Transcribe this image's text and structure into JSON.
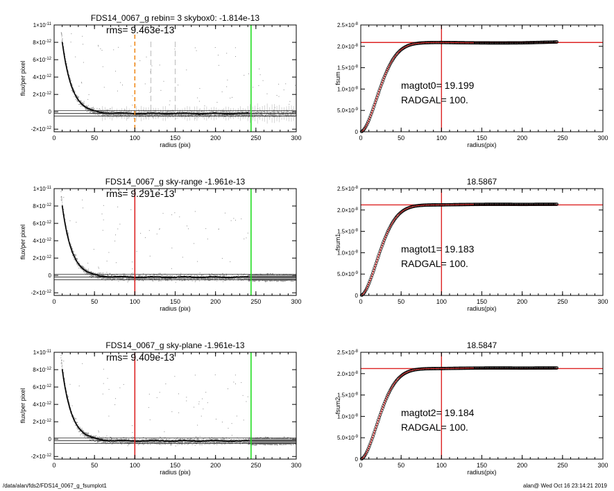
{
  "chart_data": [
    {
      "type": "scatter",
      "title": "FDS14_0067_g rebin= 3    skybox0: -1.814e-13",
      "annotation": "rms= 9.463e-13",
      "xlabel": "radius (pix)",
      "ylabel": "flux/per pixel",
      "xlim": [
        0,
        300
      ],
      "ylim": [
        -2.3e-12,
        1e-11
      ],
      "xticks": [
        0,
        50,
        100,
        150,
        200,
        250,
        300
      ],
      "xtick_labels": [
        "0",
        "50",
        "100",
        "150",
        "200",
        "250",
        "300"
      ],
      "yticks": [
        1e-11,
        8e-12,
        6e-12,
        4e-12,
        2e-12,
        0,
        -2e-12
      ],
      "ytick_labels": [
        {
          "m": "1×10",
          "e": "-11"
        },
        {
          "m": "8×10",
          "e": "-12"
        },
        {
          "m": "6×10",
          "e": "-12"
        },
        {
          "m": "4×10",
          "e": "-12"
        },
        {
          "m": "2×10",
          "e": "-12"
        },
        {
          "m": "0",
          "e": ""
        },
        {
          "m": "-2×10",
          "e": "-12"
        }
      ],
      "profile_amplitude": 1.9e-11,
      "profile_scale": 12,
      "profile_end": 242,
      "vlines": [
        {
          "x": 100,
          "color": "#f08a1c",
          "style": "dashed"
        },
        {
          "x": 120,
          "color": "#aaaaaa",
          "style": "dashed"
        },
        {
          "x": 150,
          "color": "#aaaaaa",
          "style": "dashed"
        },
        {
          "x": 244,
          "color": "#22dd22",
          "style": "solid"
        }
      ],
      "hlines": [
        {
          "y": -1.814e-13
        },
        {
          "y": 1.2e-13
        },
        {
          "y": -4.8e-13
        }
      ],
      "error_bars": true,
      "dense_tail": false,
      "colors": {
        "points": "#8c8c8c",
        "profile": "#000000"
      }
    },
    {
      "type": "scatter",
      "title": "FDS14_0067_g sky-range -1.961e-13",
      "annotation": "rms= 9.291e-13",
      "xlabel": "radius (pix)",
      "ylabel": "flux/per pixel",
      "xlim": [
        0,
        300
      ],
      "ylim": [
        -2.3e-12,
        1e-11
      ],
      "xticks": [
        0,
        50,
        100,
        150,
        200,
        250,
        300
      ],
      "xtick_labels": [
        "0",
        "50",
        "100",
        "150",
        "200",
        "250",
        "300"
      ],
      "yticks": [
        1e-11,
        8e-12,
        6e-12,
        4e-12,
        2e-12,
        0,
        -2e-12
      ],
      "ytick_labels": [
        {
          "m": "1×10",
          "e": "-11"
        },
        {
          "m": "8×10",
          "e": "-12"
        },
        {
          "m": "6×10",
          "e": "-12"
        },
        {
          "m": "4×10",
          "e": "-12"
        },
        {
          "m": "2×10",
          "e": "-12"
        },
        {
          "m": "0",
          "e": ""
        },
        {
          "m": "-2×10",
          "e": "-12"
        }
      ],
      "profile_amplitude": 1.9e-11,
      "profile_scale": 12,
      "profile_end": 242,
      "vlines": [
        {
          "x": 100,
          "color": "#dd2222",
          "style": "solid"
        },
        {
          "x": 244,
          "color": "#22dd22",
          "style": "solid"
        }
      ],
      "hlines": [
        {
          "y": -1.961e-13
        },
        {
          "y": 1.2e-13
        },
        {
          "y": -4.8e-13
        }
      ],
      "error_bars": false,
      "dense_tail": true,
      "colors": {
        "points": "#8c8c8c",
        "profile": "#000000"
      }
    },
    {
      "type": "scatter",
      "title": "FDS14_0067_g sky-plane -1.961e-13",
      "annotation": "rms= 9.409e-13",
      "xlabel": "radius (pix)",
      "ylabel": "flux/per pixel",
      "xlim": [
        0,
        300
      ],
      "ylim": [
        -2.3e-12,
        1e-11
      ],
      "xticks": [
        0,
        50,
        100,
        150,
        200,
        250,
        300
      ],
      "xtick_labels": [
        "0",
        "50",
        "100",
        "150",
        "200",
        "250",
        "300"
      ],
      "yticks": [
        1e-11,
        8e-12,
        6e-12,
        4e-12,
        2e-12,
        0,
        -2e-12
      ],
      "ytick_labels": [
        {
          "m": "1×10",
          "e": "-11"
        },
        {
          "m": "8×10",
          "e": "-12"
        },
        {
          "m": "6×10",
          "e": "-12"
        },
        {
          "m": "4×10",
          "e": "-12"
        },
        {
          "m": "2×10",
          "e": "-12"
        },
        {
          "m": "0",
          "e": ""
        },
        {
          "m": "-2×10",
          "e": "-12"
        }
      ],
      "profile_amplitude": 1.9e-11,
      "profile_scale": 12,
      "profile_end": 242,
      "vlines": [
        {
          "x": 100,
          "color": "#dd2222",
          "style": "solid"
        },
        {
          "x": 244,
          "color": "#22dd22",
          "style": "solid"
        }
      ],
      "hlines": [
        {
          "y": -1.961e-13
        },
        {
          "y": 1.2e-13
        },
        {
          "y": -4.8e-13
        }
      ],
      "error_bars": false,
      "dense_tail": true,
      "colors": {
        "points": "#8c8c8c",
        "profile": "#000000"
      }
    },
    {
      "type": "scatter",
      "title": "",
      "xlabel": "radius(pix)",
      "ylabel": "fsum",
      "xlim": [
        0,
        300
      ],
      "ylim": [
        0,
        2.5e-08
      ],
      "xticks": [
        0,
        50,
        100,
        150,
        200,
        250,
        300
      ],
      "xtick_labels": [
        "0",
        "50",
        "100",
        "150",
        "200",
        "250",
        "300"
      ],
      "yticks": [
        2.5e-08,
        2e-08,
        1.5e-08,
        1e-08,
        5e-09,
        0
      ],
      "ytick_labels": [
        {
          "m": "2.5×10",
          "e": "-8"
        },
        {
          "m": "2.0×10",
          "e": "-8"
        },
        {
          "m": "1.5×10",
          "e": "-8"
        },
        {
          "m": "1.0×10",
          "e": "-8"
        },
        {
          "m": "5.0×10",
          "e": "-9"
        },
        {
          "m": "0",
          "e": ""
        }
      ],
      "growth": {
        "A": 2.09e-08,
        "s": 30,
        "end": 243,
        "wiggle": -1.1e-10
      },
      "vline_x": 100,
      "hline_y": 2.09e-08,
      "annotations": [
        "magtot0=  19.199",
        "RADGAL=    100."
      ],
      "colors": {
        "circles": "#000000",
        "curve": "#dd2222"
      }
    },
    {
      "type": "scatter",
      "title": "18.5867",
      "xlabel": "radius(pix)",
      "ylabel": "fsum1",
      "xlim": [
        0,
        300
      ],
      "ylim": [
        0,
        2.5e-08
      ],
      "xticks": [
        0,
        50,
        100,
        150,
        200,
        250,
        300
      ],
      "xtick_labels": [
        "0",
        "50",
        "100",
        "150",
        "200",
        "250",
        "300"
      ],
      "yticks": [
        2.5e-08,
        2e-08,
        1.5e-08,
        1e-08,
        5e-09,
        0
      ],
      "ytick_labels": [
        {
          "m": "2.5×10",
          "e": "-8"
        },
        {
          "m": "2.0×10",
          "e": "-8"
        },
        {
          "m": "1.5×10",
          "e": "-8"
        },
        {
          "m": "1.0×10",
          "e": "-8"
        },
        {
          "m": "5.0×10",
          "e": "-9"
        },
        {
          "m": "0",
          "e": ""
        }
      ],
      "growth": {
        "A": 2.12e-08,
        "s": 30,
        "end": 243,
        "wiggle": 1.3e-10
      },
      "vline_x": 100,
      "hline_y": 2.12e-08,
      "annotations": [
        "magtot1=  19.183",
        "RADGAL=    100."
      ],
      "colors": {
        "circles": "#000000",
        "curve": "#dd2222"
      }
    },
    {
      "type": "scatter",
      "title": "18.5847",
      "xlabel": "radius(pix)",
      "ylabel": "fsum2",
      "xlim": [
        0,
        300
      ],
      "ylim": [
        0,
        2.5e-08
      ],
      "xticks": [
        0,
        50,
        100,
        150,
        200,
        250,
        300
      ],
      "xtick_labels": [
        "0",
        "50",
        "100",
        "150",
        "200",
        "250",
        "300"
      ],
      "yticks": [
        2.5e-08,
        2e-08,
        1.5e-08,
        1e-08,
        5e-09,
        0
      ],
      "ytick_labels": [
        {
          "m": "2.5×10",
          "e": "-8"
        },
        {
          "m": "2.0×10",
          "e": "-8"
        },
        {
          "m": "1.5×10",
          "e": "-8"
        },
        {
          "m": "1.0×10",
          "e": "-8"
        },
        {
          "m": "5.0×10",
          "e": "-9"
        },
        {
          "m": "0",
          "e": ""
        }
      ],
      "growth": {
        "A": 2.12e-08,
        "s": 30,
        "end": 243,
        "wiggle": 1.3e-10
      },
      "vline_x": 100,
      "hline_y": 2.12e-08,
      "annotations": [
        "magtot2=  19.184",
        "RADGAL=    100."
      ],
      "colors": {
        "circles": "#000000",
        "curve": "#dd2222"
      }
    }
  ],
  "footer": {
    "path": "/data/alan/fds2/FDS14_0067_g_fsumplot1",
    "stamp": "alan@  Wed Oct 16 23:14:21 2019"
  }
}
